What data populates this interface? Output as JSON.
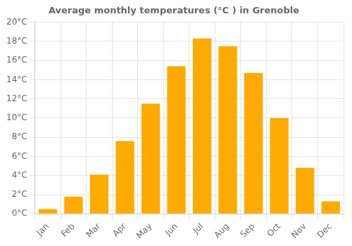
{
  "chart_data": {
    "type": "bar",
    "title": "Average monthly temperatures (°C ) in Grenoble",
    "categories": [
      "Jan",
      "Feb",
      "Mar",
      "Apr",
      "May",
      "Jun",
      "Jul",
      "Aug",
      "Sep",
      "Oct",
      "Nov",
      "Dec"
    ],
    "values": [
      0.5,
      1.8,
      4.1,
      7.6,
      11.5,
      15.4,
      18.3,
      17.5,
      14.7,
      10.0,
      4.8,
      1.3
    ],
    "color": "#FFAA00",
    "ylim": [
      0,
      20
    ],
    "yticks": [
      {
        "value": 0,
        "label": "0°C"
      },
      {
        "value": 2,
        "label": "2°C"
      },
      {
        "value": 4,
        "label": "4°C"
      },
      {
        "value": 6,
        "label": "6°C"
      },
      {
        "value": 8,
        "label": "8°C"
      },
      {
        "value": 10,
        "label": "10°C"
      },
      {
        "value": 12,
        "label": "12°C"
      },
      {
        "value": 14,
        "label": "14°C"
      },
      {
        "value": 16,
        "label": "16°C"
      },
      {
        "value": 18,
        "label": "18°C"
      },
      {
        "value": 20,
        "label": "20°C"
      }
    ],
    "grid": true
  }
}
